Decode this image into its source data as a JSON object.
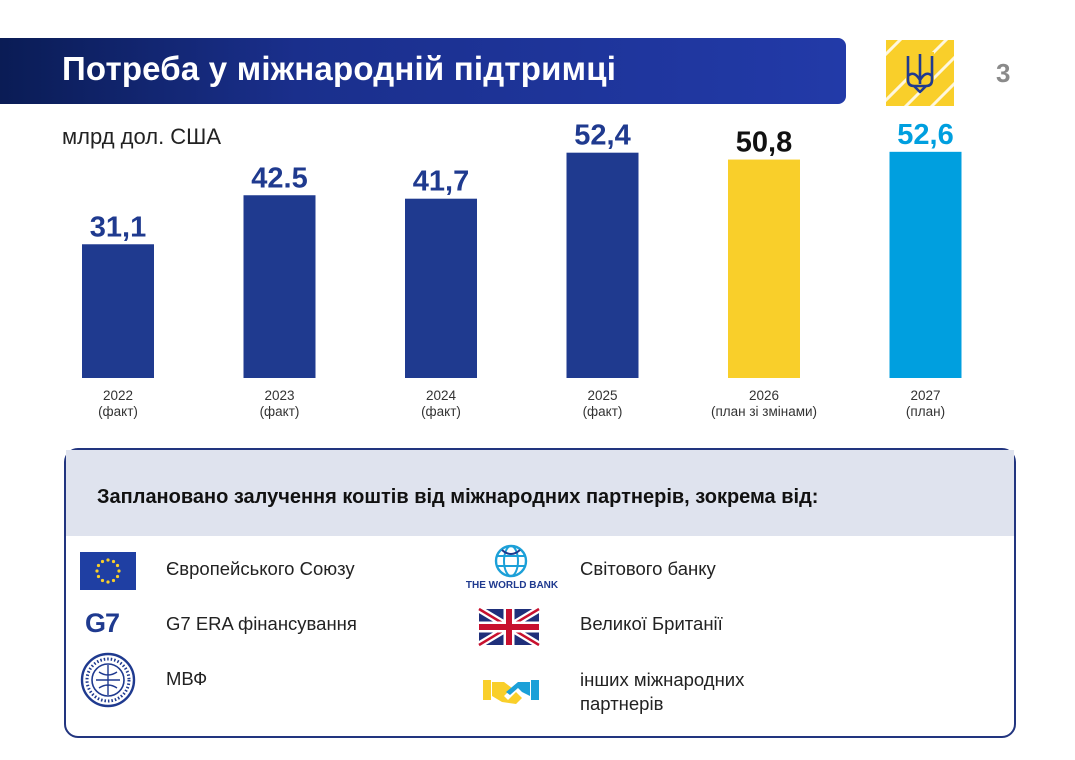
{
  "header": {
    "title": "Потреба у міжнародній підтримці",
    "page_number": "3"
  },
  "chart_data": {
    "type": "bar",
    "unit": "млрд дол. США",
    "categories": [
      "2022",
      "2023",
      "2024",
      "2025",
      "2026",
      "2027"
    ],
    "category_notes": [
      "(факт)",
      "(факт)",
      "(факт)",
      "(факт)",
      "(план зі змінами)",
      "(план)"
    ],
    "values": [
      31.1,
      42.5,
      41.7,
      52.4,
      50.8,
      52.6
    ],
    "value_labels": [
      "31,1",
      "42.5",
      "41,7",
      "52,4",
      "50,8",
      "52,6"
    ],
    "bar_colors": [
      "#1f3a8f",
      "#1f3a8f",
      "#1f3a8f",
      "#1f3a8f",
      "#f9cf2a",
      "#009fdf"
    ],
    "label_colors": [
      "#1f3a8f",
      "#1f3a8f",
      "#1f3a8f",
      "#1f3a8f",
      "#111111",
      "#009fdf"
    ],
    "ylim": [
      0,
      60
    ],
    "grid": false
  },
  "partners": {
    "heading": "Заплановано залучення коштів від  міжнародних партнерів, зокрема від:",
    "items": [
      {
        "icon": "eu-flag-icon",
        "label": "Європейського Союзу"
      },
      {
        "icon": "g7-logo-icon",
        "label": "G7 ERA фінансування",
        "logo_text": "G7"
      },
      {
        "icon": "imf-seal-icon",
        "label": "МВФ"
      },
      {
        "icon": "world-bank-logo-icon",
        "label": "Світового банку",
        "logo_text": "THE WORLD BANK"
      },
      {
        "icon": "uk-flag-icon",
        "label": "Великої Британії"
      },
      {
        "icon": "handshake-icon",
        "label_line1": "інших міжнародних",
        "label_line2": "партнерів"
      }
    ]
  },
  "colors": {
    "navy": "#1f3a8f",
    "yellow": "#f9cf2a",
    "light_blue": "#009fdf",
    "panel_border": "#22357f",
    "panel_header_bg": "#dfe3ee"
  }
}
